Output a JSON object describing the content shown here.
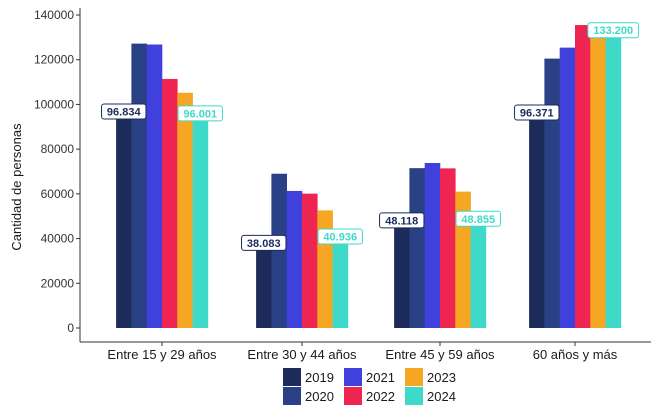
{
  "chart_data": {
    "type": "bar",
    "ylabel": "Cantidad de personas",
    "ylim": [
      0,
      140000
    ],
    "yticks": [
      0,
      20000,
      40000,
      60000,
      80000,
      100000,
      120000,
      140000
    ],
    "categories": [
      "Entre 15 y 29 años",
      "Entre 30 y 44 años",
      "Entre 45 y 59 años",
      "60 años y más"
    ],
    "series": [
      {
        "name": "2019",
        "color": "#1c2b5a",
        "values": [
          96834,
          38083,
          48118,
          96371
        ]
      },
      {
        "name": "2020",
        "color": "#2a4185",
        "values": [
          127200,
          69000,
          71500,
          120500
        ]
      },
      {
        "name": "2021",
        "color": "#4040dd",
        "values": [
          126800,
          61300,
          73800,
          125400
        ]
      },
      {
        "name": "2022",
        "color": "#ee2550",
        "values": [
          111400,
          60100,
          71400,
          135500
        ]
      },
      {
        "name": "2023",
        "color": "#f5a623",
        "values": [
          105200,
          52600,
          61000,
          136000
        ]
      },
      {
        "name": "2024",
        "color": "#3fd9c9",
        "values": [
          96001,
          40936,
          48855,
          133200
        ]
      }
    ],
    "data_labels": [
      {
        "series": "2019",
        "labels": [
          "96.834",
          "38.083",
          "48.118",
          "96.371"
        ]
      },
      {
        "series": "2024",
        "labels": [
          "96.001",
          "40.936",
          "48.855",
          "133.200"
        ]
      }
    ],
    "legend_position": "bottom",
    "grid": false
  }
}
